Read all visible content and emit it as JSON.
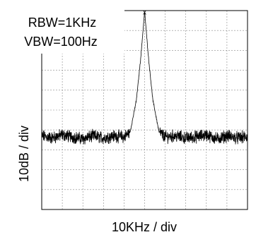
{
  "chart_data": {
    "type": "line",
    "title": "",
    "xlabel": "10KHz / div",
    "ylabel": "10dB / div",
    "annotations": [
      "RBW=1KHz",
      "VBW=100Hz"
    ],
    "grid": true,
    "x_divisions": 10,
    "y_divisions": 10,
    "xlim": [
      0,
      10
    ],
    "ylim": [
      0,
      10
    ],
    "noise_floor_div": 3.65,
    "noise_spread_div": 0.25,
    "series": [
      {
        "x": [
          0,
          0.5,
          1.0,
          1.5,
          2.0,
          2.5,
          3.0,
          3.5,
          4.0,
          4.3,
          4.6,
          4.8,
          5.0,
          5.2,
          5.4,
          5.7,
          6.0,
          6.5,
          7.0,
          7.5,
          8.0,
          8.5,
          9.0,
          9.5,
          10.0
        ],
        "values": [
          3.7,
          3.6,
          3.75,
          3.65,
          3.55,
          3.7,
          3.6,
          3.7,
          3.65,
          3.9,
          5.5,
          7.5,
          9.95,
          7.5,
          5.5,
          3.9,
          3.65,
          3.7,
          3.6,
          3.65,
          3.75,
          3.55,
          3.7,
          3.6,
          3.65
        ]
      }
    ],
    "marker": {
      "x": 5.0,
      "y": 9.95,
      "symbol": "x"
    }
  }
}
